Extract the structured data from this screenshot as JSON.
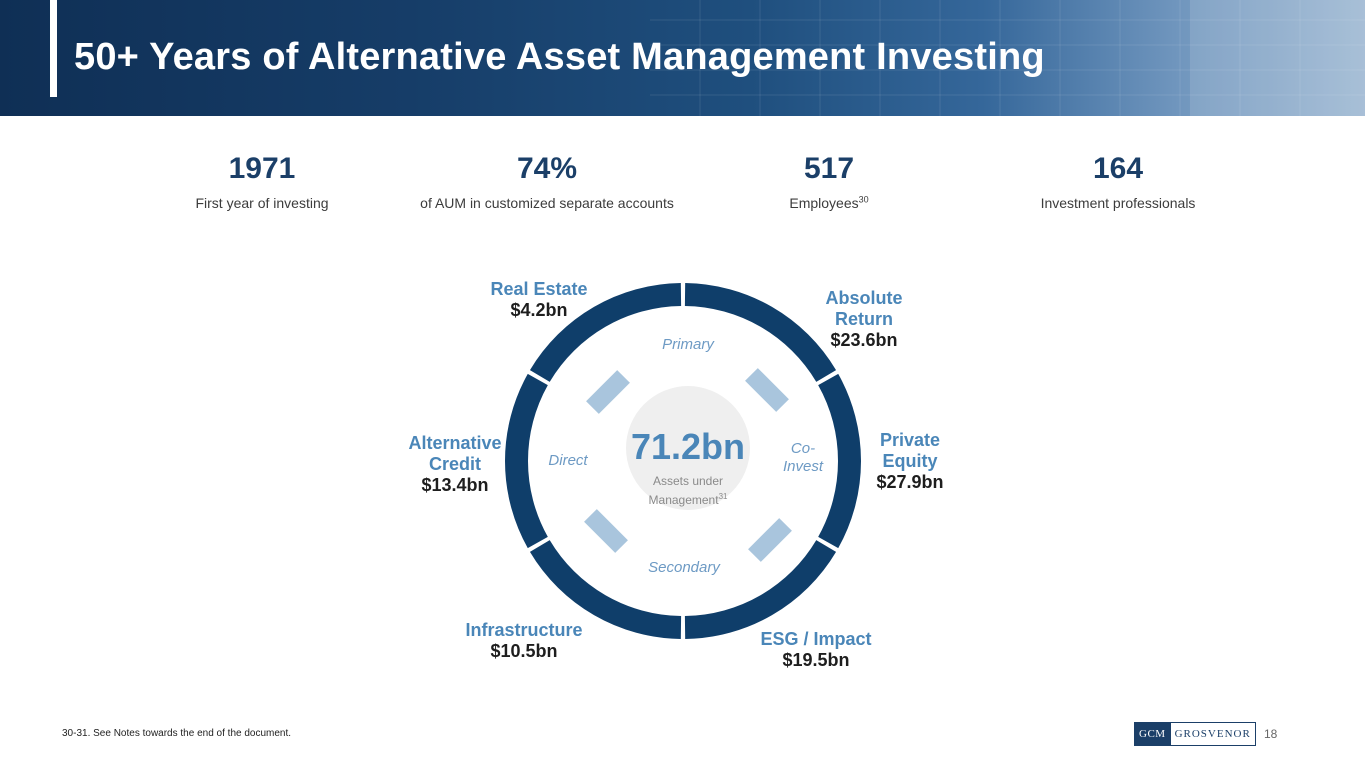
{
  "header": {
    "title": "50+ Years of Alternative Asset Management Investing"
  },
  "stats": [
    {
      "value": "1971",
      "label": "First year of investing",
      "sup": ""
    },
    {
      "value": "74%",
      "label": "of AUM in customized separate accounts",
      "sup": ""
    },
    {
      "value": "517",
      "label": "Employees",
      "sup": "30"
    },
    {
      "value": "164",
      "label": "Investment professionals",
      "sup": ""
    }
  ],
  "donut": {
    "center_value": "71.2bn",
    "center_label_line1": "Assets under",
    "center_label_line2": "Management",
    "center_sup": "31",
    "ring_color": "#0f3e6a",
    "connector_color": "#a9c5dd",
    "hub_color": "#efefef",
    "segments": [
      {
        "name_line1": "Absolute",
        "name_line2": "Return",
        "value": "$23.6bn"
      },
      {
        "name_line1": "Private",
        "name_line2": "Equity",
        "value": "$27.9bn"
      },
      {
        "name_line1": "ESG / Impact",
        "name_line2": "",
        "value": "$19.5bn"
      },
      {
        "name_line1": "Infrastructure",
        "name_line2": "",
        "value": "$10.5bn"
      },
      {
        "name_line1": "Alternative",
        "name_line2": "Credit",
        "value": "$13.4bn"
      },
      {
        "name_line1": "Real Estate",
        "name_line2": "",
        "value": "$4.2bn"
      }
    ],
    "inner_labels": {
      "primary": "Primary",
      "co_invest_line1": "Co-",
      "co_invest_line2": "Invest",
      "secondary": "Secondary",
      "direct": "Direct"
    }
  },
  "footer": {
    "footnote": "30-31. See Notes towards the end of the document.",
    "logo_box": "GCM",
    "logo_text": "GROSVENOR",
    "page_number": "18"
  }
}
